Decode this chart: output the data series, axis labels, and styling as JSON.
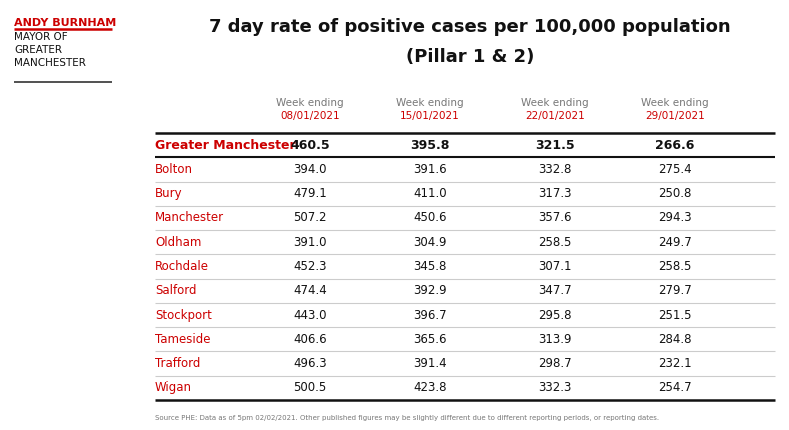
{
  "title_line1": "7 day rate of positive cases per 100,000 population",
  "title_line2": "(Pillar 1 & 2)",
  "header_line1": [
    "Week ending",
    "Week ending",
    "Week ending",
    "Week ending"
  ],
  "header_line2": [
    "08/01/2021",
    "15/01/2021",
    "22/01/2021",
    "29/01/2021"
  ],
  "rows": [
    {
      "name": "Greater Manchester",
      "values": [
        "460.5",
        "395.8",
        "321.5",
        "266.6"
      ],
      "bold": true,
      "red_name": true
    },
    {
      "name": "Bolton",
      "values": [
        "394.0",
        "391.6",
        "332.8",
        "275.4"
      ],
      "bold": false,
      "red_name": true
    },
    {
      "name": "Bury",
      "values": [
        "479.1",
        "411.0",
        "317.3",
        "250.8"
      ],
      "bold": false,
      "red_name": true
    },
    {
      "name": "Manchester",
      "values": [
        "507.2",
        "450.6",
        "357.6",
        "294.3"
      ],
      "bold": false,
      "red_name": true
    },
    {
      "name": "Oldham",
      "values": [
        "391.0",
        "304.9",
        "258.5",
        "249.7"
      ],
      "bold": false,
      "red_name": true
    },
    {
      "name": "Rochdale",
      "values": [
        "452.3",
        "345.8",
        "307.1",
        "258.5"
      ],
      "bold": false,
      "red_name": true
    },
    {
      "name": "Salford",
      "values": [
        "474.4",
        "392.9",
        "347.7",
        "279.7"
      ],
      "bold": false,
      "red_name": true
    },
    {
      "name": "Stockport",
      "values": [
        "443.0",
        "396.7",
        "295.8",
        "251.5"
      ],
      "bold": false,
      "red_name": true
    },
    {
      "name": "Tameside",
      "values": [
        "406.6",
        "365.6",
        "313.9",
        "284.8"
      ],
      "bold": false,
      "red_name": true
    },
    {
      "name": "Trafford",
      "values": [
        "496.3",
        "391.4",
        "298.7",
        "232.1"
      ],
      "bold": false,
      "red_name": true
    },
    {
      "name": "Wigan",
      "values": [
        "500.5",
        "423.8",
        "332.3",
        "254.7"
      ],
      "bold": false,
      "red_name": true
    }
  ],
  "footer": "Source PHE: Data as of 5pm 02/02/2021. Other published figures may be slightly different due to different reporting periods, or reporting dates.",
  "logo_name": "ANDY BURNHAM",
  "logo_title": "MAYOR OF\nGREATER\nMANCHESTER",
  "bg_color": "#ffffff",
  "red_color": "#cc0000",
  "dark_color": "#111111",
  "gray_color": "#777777",
  "line_color": "#cccccc",
  "logo_underline_color": "#cc0000",
  "logo_bottom_line_color": "#333333"
}
